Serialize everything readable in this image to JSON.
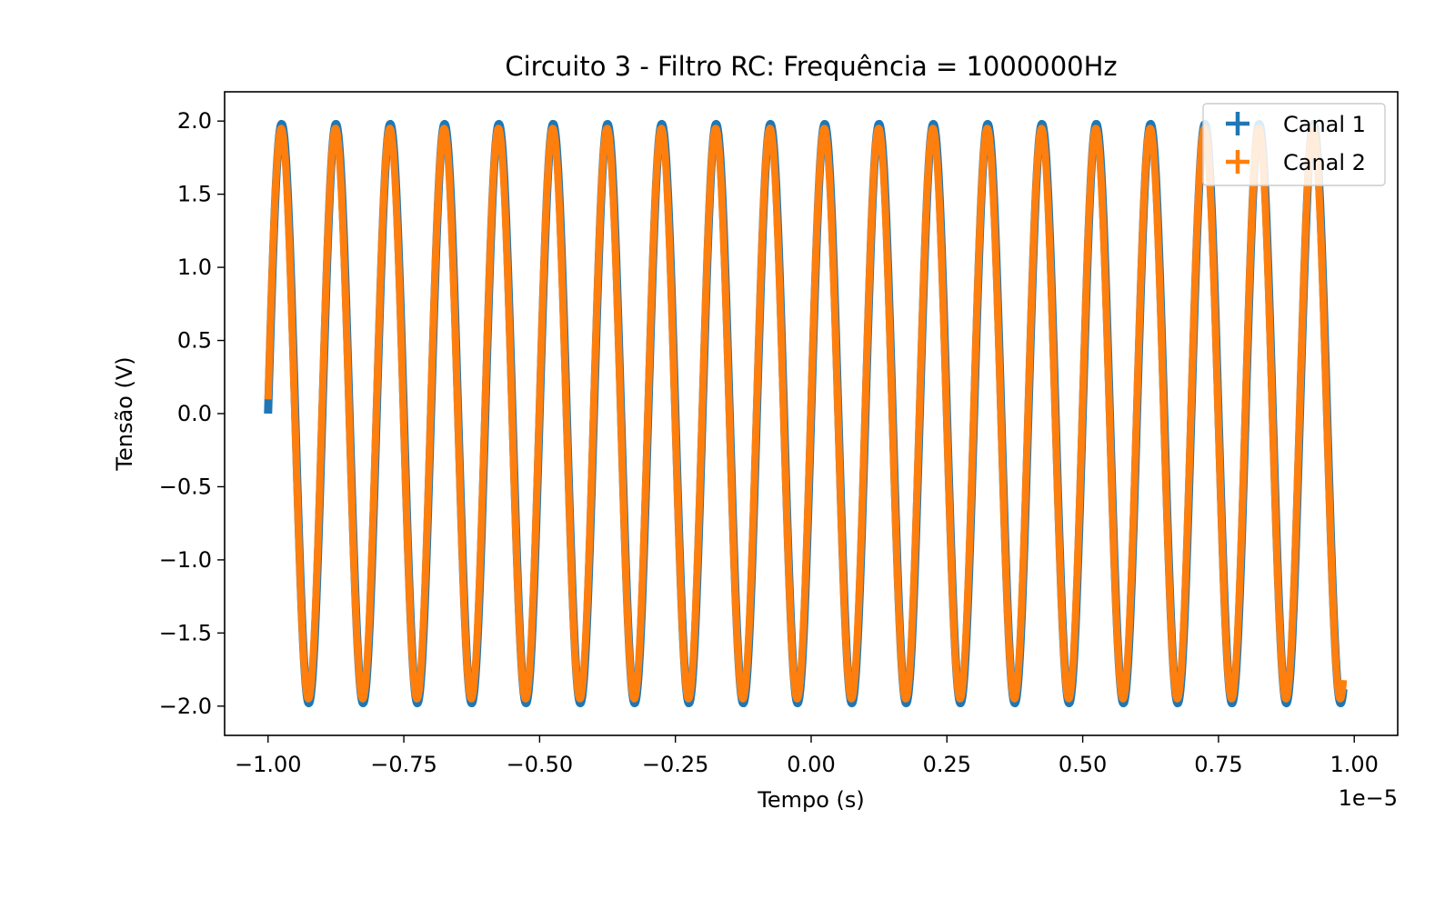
{
  "chart_data": {
    "type": "line",
    "title": "Circuito 3 - Filtro RC: Frequência = 1000000Hz",
    "xlabel": "Tempo (s)",
    "ylabel": "Tensão (V)",
    "x_offset_label": "1e−5",
    "xlim": [
      -1.08,
      1.08
    ],
    "ylim": [
      -2.2,
      2.2
    ],
    "x_ticks": [
      -1.0,
      -0.75,
      -0.5,
      -0.25,
      0.0,
      0.25,
      0.5,
      0.75,
      1.0
    ],
    "x_tick_labels": [
      "−1.00",
      "−0.75",
      "−0.50",
      "−0.25",
      "0.00",
      "0.25",
      "0.50",
      "0.75",
      "1.00"
    ],
    "y_ticks": [
      2.0,
      1.5,
      1.0,
      0.5,
      0.0,
      -0.5,
      -1.0,
      -1.5,
      -2.0
    ],
    "y_tick_labels": [
      "2.0",
      "1.5",
      "1.0",
      "0.5",
      "0.0",
      "−0.5",
      "−1.0",
      "−1.5",
      "−2.0"
    ],
    "grid": false,
    "legend_position": "top-right",
    "series": [
      {
        "name": "Canal 1",
        "color": "#1f77b4",
        "marker": "plus",
        "x_range": [
          -1.0,
          0.98
        ],
        "amplitude": 1.98,
        "period": 0.1
      },
      {
        "name": "Canal 2",
        "color": "#ff7f0e",
        "marker": "plus",
        "x_range": [
          -1.0,
          0.98
        ],
        "amplitude": 1.95,
        "period": 0.1
      }
    ]
  }
}
